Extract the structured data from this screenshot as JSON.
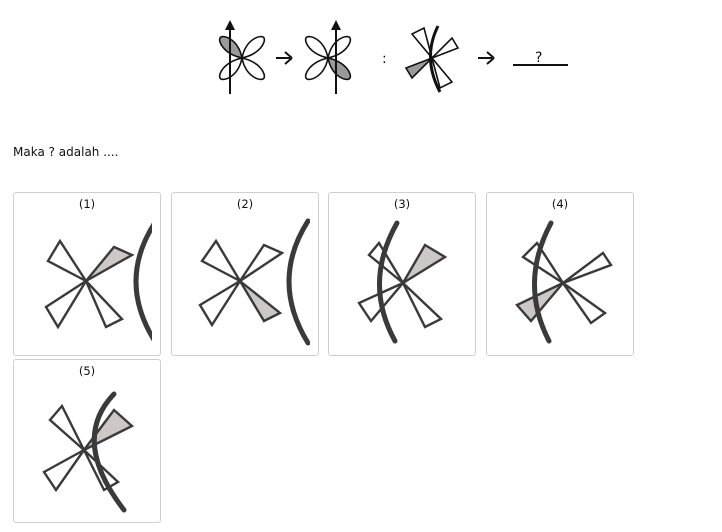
{
  "question": {
    "separator": ":",
    "blank": "?",
    "prompt": "Maka ? adalah ...."
  },
  "options": [
    {
      "label": "(1)",
      "arc": "right",
      "shaded": [
        "upper-right"
      ]
    },
    {
      "label": "(2)",
      "arc": "right",
      "shaded": [
        "lower-right"
      ]
    },
    {
      "label": "(3)",
      "arc": "left",
      "shaded": [
        "upper-right"
      ]
    },
    {
      "label": "(4)",
      "arc": "left",
      "shaded": [
        "lower-left"
      ]
    },
    {
      "label": "(5)",
      "arc": "right-crossing",
      "shaded": [
        "upper-right"
      ]
    }
  ],
  "colors": {
    "shade": "#cdc8c6",
    "stroke": "#3a3a3a",
    "card_border": "#cfcfcf"
  }
}
